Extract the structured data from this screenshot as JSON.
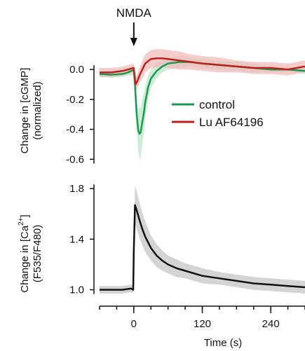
{
  "chart_data": [
    {
      "type": "line",
      "annotation": "NMDA",
      "annotation_x": 0,
      "ylabel": "Change in [cGMP]",
      "ylabel2": "(normalized)",
      "xlim": [
        -60,
        300
      ],
      "ylim": [
        -0.65,
        0.16
      ],
      "yticks": [
        0.0,
        -0.2,
        -0.4,
        -0.6
      ],
      "ytick_labels": [
        "0.0",
        "-0.2",
        "-0.4",
        "-0.6"
      ],
      "legend_position": "center-right",
      "series": [
        {
          "name": "control",
          "color": "#1a9a50",
          "band_color": "#bfe6cc",
          "x": [
            -60,
            -40,
            -20,
            -10,
            -5,
            0,
            2,
            5,
            8,
            10,
            12,
            15,
            18,
            20,
            25,
            30,
            40,
            50,
            60,
            80,
            100,
            120,
            150,
            180,
            210,
            240,
            270,
            300
          ],
          "y": [
            -0.03,
            -0.035,
            -0.03,
            -0.02,
            -0.01,
            -0.005,
            -0.1,
            -0.3,
            -0.41,
            -0.43,
            -0.42,
            -0.35,
            -0.28,
            -0.22,
            -0.12,
            -0.06,
            -0.01,
            0.02,
            0.04,
            0.05,
            0.05,
            0.04,
            0.03,
            0.02,
            0.01,
            0.0,
            0.0,
            -0.01
          ],
          "err": [
            0.02,
            0.02,
            0.02,
            0.02,
            0.03,
            0.03,
            0.06,
            0.1,
            0.14,
            0.17,
            0.17,
            0.15,
            0.13,
            0.11,
            0.08,
            0.06,
            0.05,
            0.04,
            0.04,
            0.04,
            0.03,
            0.03,
            0.03,
            0.03,
            0.03,
            0.02,
            0.02,
            0.02
          ]
        },
        {
          "name": "Lu AF64196",
          "color": "#c0201c",
          "band_color": "#f2bcbc",
          "x": [
            -60,
            -40,
            -20,
            -10,
            -5,
            0,
            3,
            6,
            10,
            15,
            20,
            30,
            40,
            50,
            60,
            80,
            100,
            120,
            150,
            180,
            210,
            240,
            270,
            300
          ],
          "y": [
            -0.02,
            -0.02,
            -0.01,
            0.0,
            0.005,
            0.01,
            -0.1,
            -0.08,
            -0.04,
            0.0,
            0.04,
            0.07,
            0.075,
            0.075,
            0.07,
            0.06,
            0.05,
            0.04,
            0.03,
            0.02,
            0.01,
            0.01,
            0.0,
            0.02
          ],
          "err": [
            0.03,
            0.03,
            0.03,
            0.03,
            0.03,
            0.03,
            0.05,
            0.05,
            0.05,
            0.06,
            0.06,
            0.06,
            0.06,
            0.06,
            0.06,
            0.06,
            0.05,
            0.05,
            0.05,
            0.04,
            0.04,
            0.04,
            0.04,
            0.04
          ]
        }
      ]
    },
    {
      "type": "line",
      "ylabel": "Change in [Ca",
      "ylabel_sup": "2+",
      "ylabel_end": "]",
      "ylabel2": "(F535/F480)",
      "xlabel": "Time (s)",
      "xlim": [
        -60,
        300
      ],
      "ylim": [
        0.92,
        1.84
      ],
      "yticks": [
        1.0,
        1.4,
        1.8
      ],
      "ytick_labels": [
        "1.0",
        "1.4",
        "1.8"
      ],
      "xticks": [
        0,
        120,
        240
      ],
      "xtick_labels": [
        "0",
        "120",
        "240"
      ],
      "xminor_ticks": [
        -60,
        -30,
        0,
        30,
        60,
        90,
        120,
        150,
        180,
        210,
        240,
        270,
        300
      ],
      "series": [
        {
          "name": "",
          "color": "#111111",
          "band_color": "#c6c6c6",
          "x": [
            -60,
            -40,
            -20,
            -5,
            -1,
            0,
            2,
            5,
            10,
            15,
            20,
            30,
            40,
            50,
            60,
            75,
            90,
            120,
            150,
            180,
            210,
            240,
            270,
            300
          ],
          "y": [
            1.0,
            1.0,
            1.0,
            1.01,
            1.0,
            1.3,
            1.67,
            1.63,
            1.55,
            1.48,
            1.42,
            1.33,
            1.27,
            1.23,
            1.2,
            1.17,
            1.15,
            1.11,
            1.09,
            1.07,
            1.05,
            1.04,
            1.03,
            1.02
          ],
          "err": [
            0.03,
            0.03,
            0.03,
            0.03,
            0.03,
            0.05,
            0.15,
            0.15,
            0.14,
            0.13,
            0.12,
            0.1,
            0.09,
            0.08,
            0.07,
            0.07,
            0.06,
            0.06,
            0.05,
            0.05,
            0.05,
            0.05,
            0.05,
            0.05
          ]
        }
      ]
    }
  ]
}
